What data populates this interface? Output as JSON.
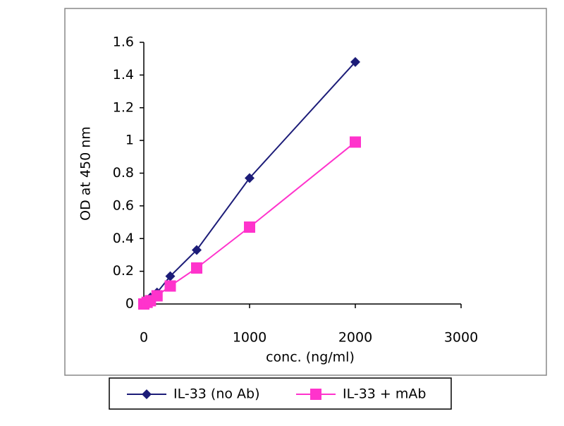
{
  "chart_data": {
    "type": "line",
    "x_label": "conc. (ng/ml)",
    "y_label": "OD at 450 nm",
    "xlim": [
      0,
      3000
    ],
    "xticks": [
      0,
      1000,
      2000,
      3000
    ],
    "ylim": [
      0,
      1.6
    ],
    "yticks": [
      0,
      0.2,
      0.4,
      0.6,
      0.8,
      1,
      1.2,
      1.4,
      1.6
    ],
    "legend_position": "bottom",
    "series": [
      {
        "name": "IL-33 (no Ab)",
        "color": "#1c1c78",
        "marker": "diamond",
        "x": [
          0,
          31,
          62.5,
          125,
          250,
          500,
          1000,
          2000
        ],
        "values": [
          0.0,
          0.02,
          0.04,
          0.07,
          0.17,
          0.33,
          0.77,
          1.48
        ]
      },
      {
        "name": "IL-33 + mAb",
        "color": "#ff33cc",
        "marker": "square",
        "x": [
          0,
          31,
          62.5,
          125,
          250,
          500,
          1000,
          2000
        ],
        "values": [
          0.0,
          0.01,
          0.02,
          0.05,
          0.11,
          0.22,
          0.47,
          0.99
        ]
      }
    ]
  }
}
